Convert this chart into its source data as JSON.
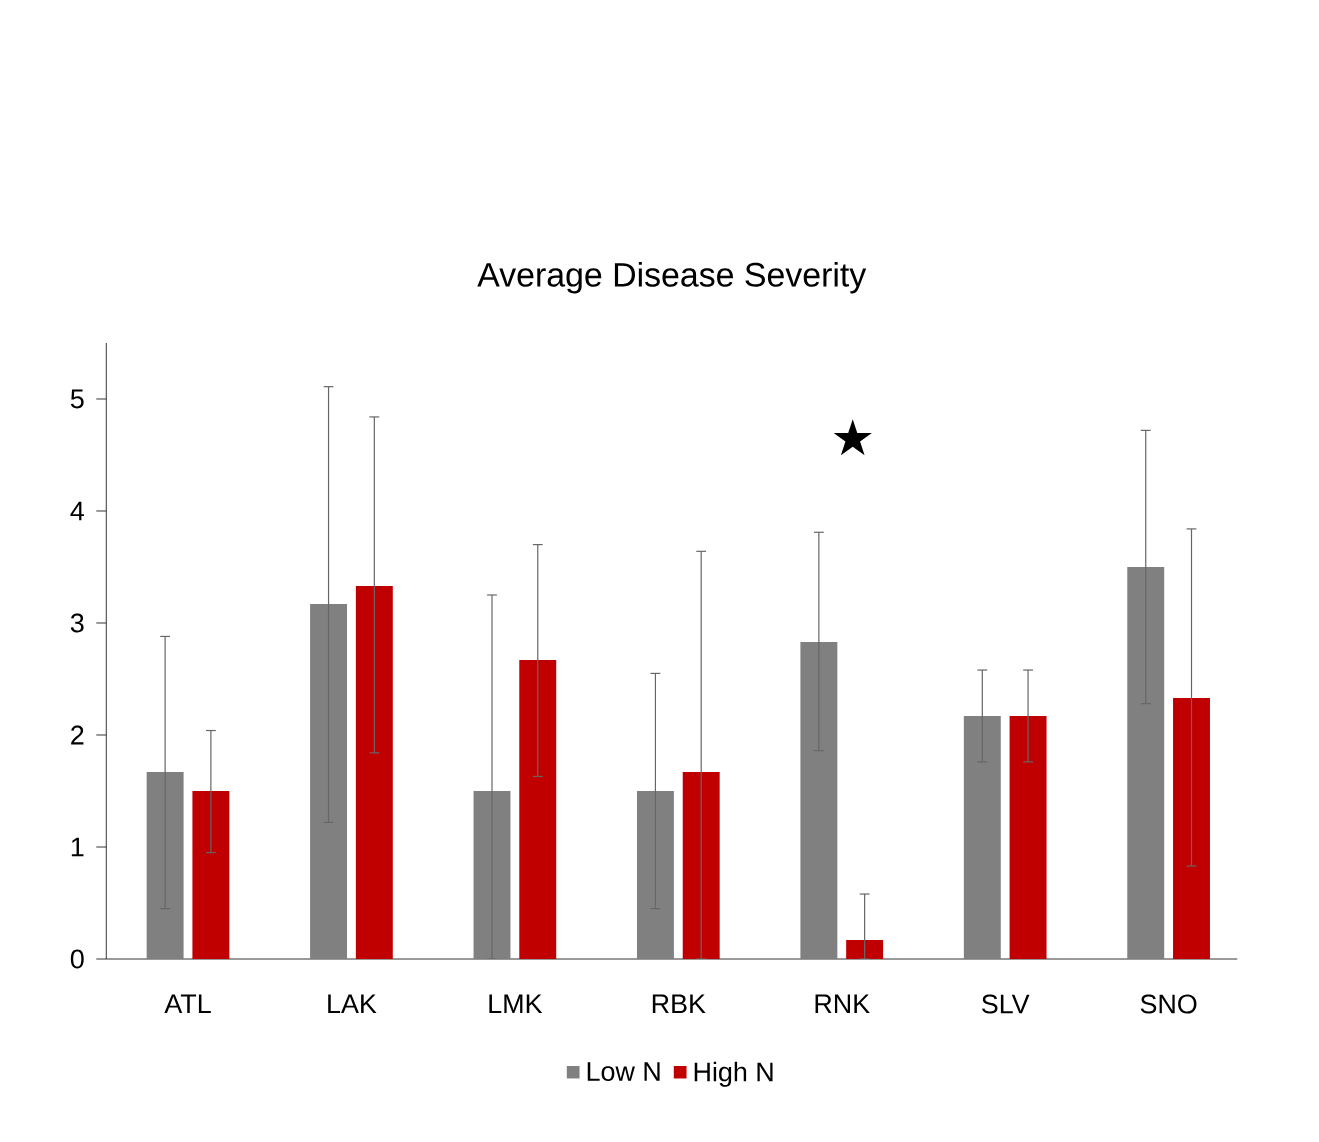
{
  "chart_data": {
    "type": "bar",
    "title": "Average Disease Severity",
    "categories": [
      "ATL",
      "LAK",
      "LMK",
      "RBK",
      "RNK",
      "SLV",
      "SNO"
    ],
    "series": [
      {
        "name": "Low N",
        "color": "#808080",
        "values": [
          1.67,
          3.17,
          1.5,
          1.5,
          2.83,
          2.17,
          3.5
        ],
        "errors": [
          [
            0.45,
            2.88
          ],
          [
            1.22,
            5.11
          ],
          [
            0,
            3.25
          ],
          [
            0.45,
            2.55
          ],
          [
            1.86,
            3.81
          ],
          [
            1.76,
            2.58
          ],
          [
            2.28,
            4.72
          ]
        ]
      },
      {
        "name": "High N",
        "color": "#c00000",
        "values": [
          1.5,
          3.33,
          2.67,
          1.67,
          0.17,
          2.17,
          2.33
        ],
        "errors": [
          [
            0.95,
            2.04
          ],
          [
            1.84,
            4.84
          ],
          [
            1.63,
            3.7
          ],
          [
            0,
            3.64
          ],
          [
            0,
            0.58
          ],
          [
            1.76,
            2.58
          ],
          [
            0.83,
            3.84
          ]
        ]
      }
    ],
    "annotations": [
      "★"
    ],
    "ylim": [
      0,
      5.5
    ],
    "yticks": [
      0,
      1,
      2,
      3,
      4,
      5
    ],
    "grid": false,
    "legend": "bottom"
  }
}
